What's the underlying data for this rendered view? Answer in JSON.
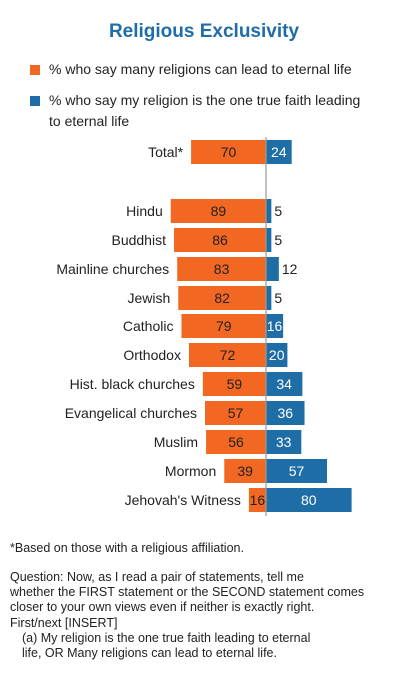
{
  "title": "Religious Exclusivity",
  "legend": [
    {
      "label_lines": [
        "% who say many religions can lead to eternal life"
      ],
      "color": "#f26722"
    },
    {
      "label_lines": [
        "% who say my religion is the one true faith leading",
        "to eternal life"
      ],
      "color": "#1f6da6"
    }
  ],
  "chart_data": {
    "type": "bar",
    "orientation": "horizontal-diverging",
    "categories": [
      "Total*",
      "Hindu",
      "Buddhist",
      "Mainline churches",
      "Jewish",
      "Catholic",
      "Orthodox",
      "Hist. black churches",
      "Evangelical churches",
      "Muslim",
      "Mormon",
      "Jehovah's Witness"
    ],
    "series": [
      {
        "name": "% who say many religions can lead to eternal life",
        "color": "#f26722",
        "values": [
          70,
          89,
          86,
          83,
          82,
          79,
          72,
          59,
          57,
          56,
          39,
          16
        ]
      },
      {
        "name": "% who say my religion is the one true faith leading to eternal life",
        "color": "#1f6da6",
        "values": [
          24,
          5,
          5,
          12,
          5,
          16,
          20,
          34,
          36,
          33,
          57,
          80
        ]
      }
    ]
  },
  "footnote": "*Based on those with a religious affiliation.",
  "question": {
    "lines": [
      "Question: Now, as I read a pair of statements, tell me",
      "whether the FIRST statement or the SECOND statement comes",
      "closer to your own views even if neither is exactly right.",
      "First/next [INSERT]"
    ],
    "indented_lines": [
      "(a) My religion is the one true faith leading to eternal",
      "life, OR Many religions can lead to eternal life."
    ]
  }
}
